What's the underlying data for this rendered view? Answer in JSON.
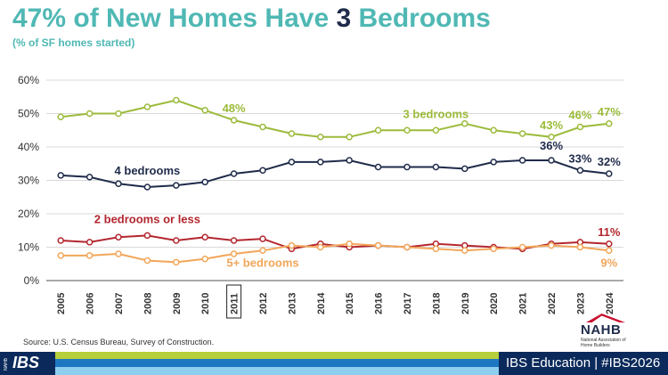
{
  "title_parts": {
    "prefix": "47% of New Homes Have ",
    "number": "3",
    "suffix": " Bedrooms"
  },
  "subtitle": "(% of SF homes started)",
  "source": "Source: U.S. Census Bureau, Survey of Construction.",
  "logo": {
    "name": "NAHB",
    "subtitle": "National Association of Home Builders"
  },
  "footer": {
    "brand": "IBS",
    "brand_small": "NAHB",
    "text": "IBS Education | #IBS2026"
  },
  "colors": {
    "title": "#4fb8b4",
    "three": "#9bbb3b",
    "four": "#1f2b4a",
    "two": "#b3262e",
    "five": "#f2a65a",
    "grid": "#d9d9d9"
  },
  "chart_data": {
    "type": "line",
    "x": [
      "2005",
      "2006",
      "2007",
      "2008",
      "2009",
      "2010",
      "2011",
      "2012",
      "2013",
      "2014",
      "2015",
      "2016",
      "2017",
      "2018",
      "2019",
      "2020",
      "2021",
      "2022",
      "2023",
      "2024"
    ],
    "highlighted_x": "2011",
    "ylim": [
      0,
      60
    ],
    "yticks": [
      "0%",
      "10%",
      "20%",
      "30%",
      "40%",
      "50%",
      "60%"
    ],
    "grid": true,
    "series": [
      {
        "name": "3 bedrooms",
        "color": "#9bbb3b",
        "values": [
          49,
          50,
          50,
          52,
          54,
          51,
          48,
          46,
          44,
          43,
          43,
          45,
          45,
          45,
          47,
          45,
          44,
          43,
          46,
          47
        ]
      },
      {
        "name": "4 bedrooms",
        "color": "#1f2b4a",
        "values": [
          31.5,
          31,
          29,
          28,
          28.5,
          29.5,
          32,
          33,
          35.5,
          35.5,
          36,
          34,
          34,
          34,
          33.5,
          35.5,
          36,
          36,
          33,
          32
        ]
      },
      {
        "name": "2 bedrooms or less",
        "color": "#b3262e",
        "values": [
          12,
          11.5,
          13,
          13.5,
          12,
          13,
          12,
          12.5,
          9.5,
          11,
          10,
          10.5,
          10,
          11,
          10.5,
          10,
          9.5,
          11,
          11.5,
          11
        ]
      },
      {
        "name": "5+ bedrooms",
        "color": "#f2a65a",
        "values": [
          7.5,
          7.5,
          8,
          6,
          5.5,
          6.5,
          8,
          9,
          10.5,
          10,
          11,
          10.5,
          10,
          9.5,
          9,
          9.5,
          10,
          10.5,
          10,
          9
        ]
      }
    ],
    "annotations": [
      {
        "text": "48%",
        "series": 0,
        "index": 6
      },
      {
        "text": "43%",
        "series": 0,
        "index": 17
      },
      {
        "text": "46%",
        "series": 0,
        "index": 18
      },
      {
        "text": "47%",
        "series": 0,
        "index": 19
      },
      {
        "text": "36%",
        "series": 1,
        "index": 17
      },
      {
        "text": "33%",
        "series": 1,
        "index": 18
      },
      {
        "text": "32%",
        "series": 1,
        "index": 19
      },
      {
        "text": "11%",
        "series": 2,
        "index": 19
      },
      {
        "text": "9%",
        "series": 3,
        "index": 19
      }
    ],
    "series_labels": [
      {
        "text": "3 bedrooms",
        "series": 0,
        "index": 13
      },
      {
        "text": "4 bedrooms",
        "series": 1,
        "index": 3
      },
      {
        "text": "2 bedrooms or less",
        "series": 2,
        "index": 3
      },
      {
        "text": "5+ bedrooms",
        "series": 3,
        "index": 7
      }
    ]
  }
}
